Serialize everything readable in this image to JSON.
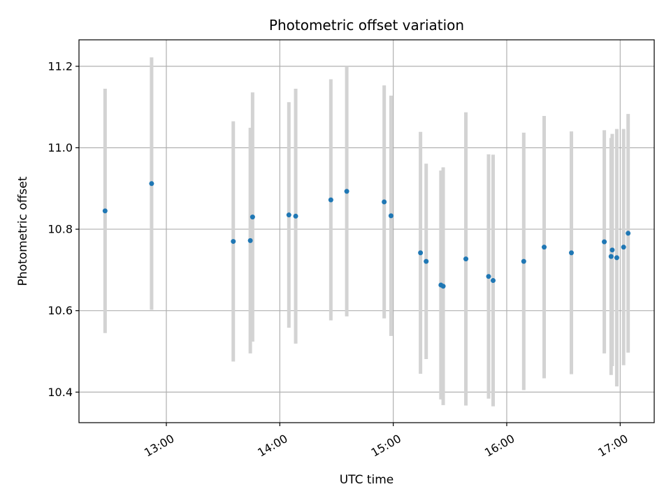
{
  "chart_data": {
    "type": "scatter",
    "title": "Photometric offset variation",
    "xlabel": "UTC time",
    "ylabel": "Photometric offset",
    "x_unit": "hours UTC",
    "xlim": [
      12.23,
      17.3
    ],
    "ylim": [
      10.325,
      11.265
    ],
    "xticks": [
      {
        "value": 13,
        "label": "13:00"
      },
      {
        "value": 14,
        "label": "14:00"
      },
      {
        "value": 15,
        "label": "15:00"
      },
      {
        "value": 16,
        "label": "16:00"
      },
      {
        "value": 17,
        "label": "17:00"
      }
    ],
    "yticks": [
      {
        "value": 10.4,
        "label": "10.4"
      },
      {
        "value": 10.6,
        "label": "10.6"
      },
      {
        "value": 10.8,
        "label": "10.8"
      },
      {
        "value": 11.0,
        "label": "11.0"
      },
      {
        "value": 11.2,
        "label": "11.2"
      }
    ],
    "grid": true,
    "colors": {
      "point": "#1f77b4",
      "errorbar": "#d3d3d3",
      "grid": "#b0b0b0"
    },
    "points": [
      {
        "x": 12.46,
        "y": 10.845,
        "yerr": 0.3
      },
      {
        "x": 12.87,
        "y": 10.912,
        "yerr": 0.31
      },
      {
        "x": 13.59,
        "y": 10.77,
        "yerr": 0.295
      },
      {
        "x": 13.74,
        "y": 10.772,
        "yerr": 0.277
      },
      {
        "x": 13.76,
        "y": 10.83,
        "yerr": 0.306
      },
      {
        "x": 14.08,
        "y": 10.835,
        "yerr": 0.277
      },
      {
        "x": 14.14,
        "y": 10.832,
        "yerr": 0.313
      },
      {
        "x": 14.45,
        "y": 10.872,
        "yerr": 0.296
      },
      {
        "x": 14.59,
        "y": 10.893,
        "yerr": 0.307
      },
      {
        "x": 14.92,
        "y": 10.867,
        "yerr": 0.286
      },
      {
        "x": 14.98,
        "y": 10.833,
        "yerr": 0.295
      },
      {
        "x": 15.24,
        "y": 10.742,
        "yerr": 0.297
      },
      {
        "x": 15.29,
        "y": 10.721,
        "yerr": 0.24
      },
      {
        "x": 15.42,
        "y": 10.663,
        "yerr": 0.281
      },
      {
        "x": 15.44,
        "y": 10.66,
        "yerr": 0.292
      },
      {
        "x": 15.64,
        "y": 10.727,
        "yerr": 0.36
      },
      {
        "x": 15.84,
        "y": 10.684,
        "yerr": 0.3
      },
      {
        "x": 15.88,
        "y": 10.674,
        "yerr": 0.309
      },
      {
        "x": 16.15,
        "y": 10.721,
        "yerr": 0.316
      },
      {
        "x": 16.33,
        "y": 10.756,
        "yerr": 0.322
      },
      {
        "x": 16.57,
        "y": 10.742,
        "yerr": 0.298
      },
      {
        "x": 16.86,
        "y": 10.769,
        "yerr": 0.274
      },
      {
        "x": 16.92,
        "y": 10.733,
        "yerr": 0.291
      },
      {
        "x": 16.93,
        "y": 10.749,
        "yerr": 0.285
      },
      {
        "x": 16.97,
        "y": 10.73,
        "yerr": 0.316
      },
      {
        "x": 17.03,
        "y": 10.756,
        "yerr": 0.29
      },
      {
        "x": 17.07,
        "y": 10.79,
        "yerr": 0.293
      }
    ]
  }
}
